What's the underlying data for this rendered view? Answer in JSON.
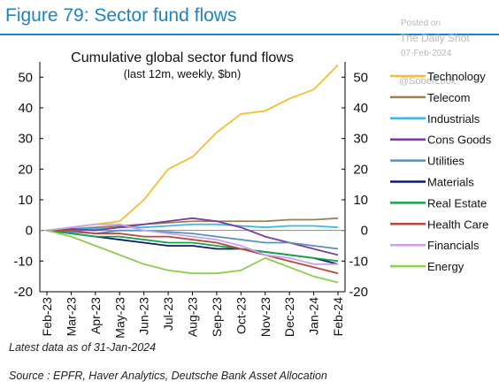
{
  "figure_title": "Figure 79: Sector fund flows",
  "watermark": {
    "posted": "Posted on",
    "source": "The Daily Shot",
    "date": "07-Feb-2024",
    "handle": "@SoberLook"
  },
  "latest_note": "Latest data as of 31-Jan-2024",
  "source_note": "Source : EPFR, Haver Analytics, Deutsche Bank Asset Allocation",
  "chart_data": {
    "type": "line",
    "title": "Cumulative global sector fund flows",
    "subtitle": "(last 12m, weekly, $bn)",
    "xlabel": "",
    "ylabel": "",
    "ylim": [
      -20,
      55
    ],
    "yticks": [
      50,
      40,
      30,
      20,
      10,
      0,
      -10,
      -20
    ],
    "dual_axis_mirror": true,
    "grid": false,
    "legend_position": "right",
    "x_labels": [
      "Feb-23",
      "Mar-23",
      "Apr-23",
      "May-23",
      "Jun-23",
      "Jul-23",
      "Aug-23",
      "Sep-23",
      "Oct-23",
      "Nov-23",
      "Dec-23",
      "Jan-24",
      "Feb-24"
    ],
    "x": [
      "Feb-23",
      "Mar-23",
      "Apr-23",
      "May-23",
      "Jun-23",
      "Jul-23",
      "Aug-23",
      "Sep-23",
      "Oct-23",
      "Nov-23",
      "Dec-23",
      "Jan-24",
      "Feb-24"
    ],
    "series": [
      {
        "name": "Technology",
        "color": "#f5be33",
        "values": [
          0,
          1,
          2,
          3,
          10,
          20,
          24,
          32,
          38,
          39,
          43,
          46,
          54
        ]
      },
      {
        "name": "Telecom",
        "color": "#9a8052",
        "values": [
          0,
          0.5,
          1,
          1.5,
          2,
          2.5,
          3,
          3,
          3,
          3,
          3.5,
          3.5,
          4
        ]
      },
      {
        "name": "Industrials",
        "color": "#3fb6e6",
        "values": [
          0,
          0.5,
          0.5,
          1,
          1,
          1.5,
          2,
          2,
          1.5,
          1,
          1.5,
          1.5,
          1
        ]
      },
      {
        "name": "Cons Goods",
        "color": "#7a3c9e",
        "values": [
          0,
          0.5,
          0,
          1,
          2,
          3,
          4,
          3,
          1,
          -2,
          -4,
          -6,
          -8
        ]
      },
      {
        "name": "Utilities",
        "color": "#5d8fbd",
        "values": [
          0,
          -0.5,
          -1,
          0,
          0,
          -0.5,
          -1,
          -2,
          -3,
          -4,
          -4,
          -5,
          -6
        ]
      },
      {
        "name": "Materials",
        "color": "#0d1a6e",
        "values": [
          0,
          -1,
          -2,
          -3,
          -4,
          -5,
          -5,
          -6,
          -6,
          -7,
          -8,
          -9,
          -11
        ]
      },
      {
        "name": "Real Estate",
        "color": "#16a34a",
        "values": [
          0,
          -1,
          -2,
          -2,
          -3,
          -4,
          -4,
          -5,
          -6,
          -7,
          -8,
          -9,
          -10
        ]
      },
      {
        "name": "Health Care",
        "color": "#b5483c",
        "values": [
          0,
          0,
          -1,
          -1,
          -2,
          -2,
          -3,
          -4,
          -6,
          -8,
          -10,
          -12,
          -14
        ]
      },
      {
        "name": "Financials",
        "color": "#c9a2ec",
        "values": [
          0,
          1,
          2,
          2,
          0,
          -1,
          -2,
          -3,
          -5,
          -8,
          -9,
          -11,
          -11
        ]
      },
      {
        "name": "Energy",
        "color": "#8fcc4f",
        "values": [
          0,
          -2,
          -5,
          -8,
          -11,
          -13,
          -14,
          -14,
          -13,
          -9,
          -12,
          -15,
          -17
        ]
      }
    ]
  }
}
